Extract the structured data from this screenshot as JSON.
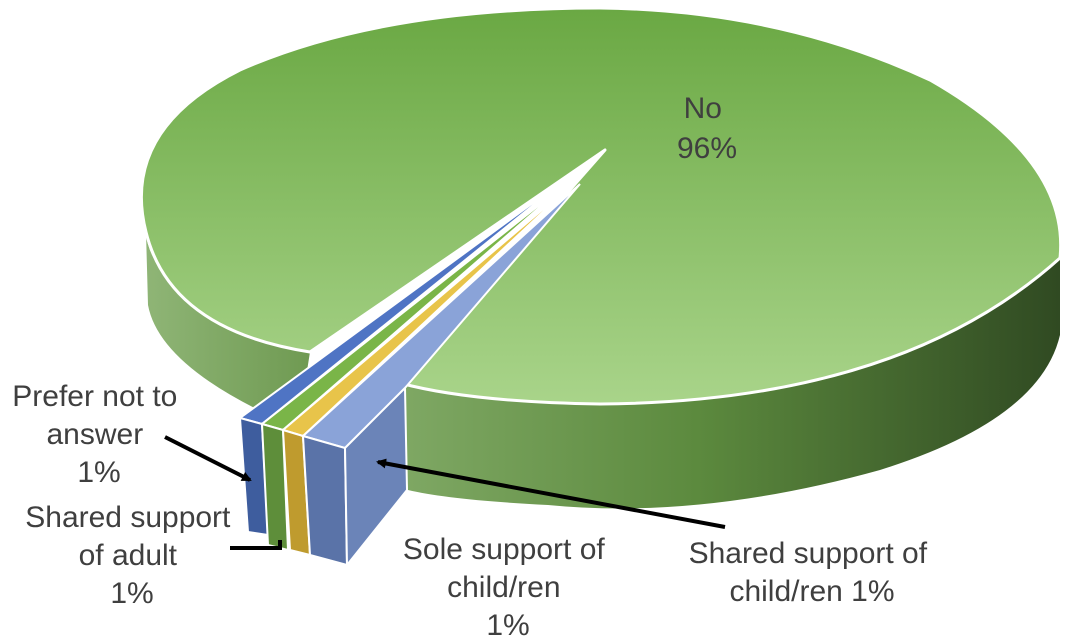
{
  "chart_data": {
    "type": "pie",
    "title": "",
    "slices": [
      {
        "label": "No",
        "value": 96,
        "value_text": "96%",
        "color": "#8cbd64"
      },
      {
        "label": "Shared support of child/ren",
        "value": 1,
        "value_text": "1%",
        "color": "#7f97cf"
      },
      {
        "label": "Sole support of child/ren",
        "value": 1,
        "value_text": "1%",
        "color": "#e8c44a"
      },
      {
        "label": "Shared support of adult",
        "value": 1,
        "value_text": "1%",
        "color": "#78b04a"
      },
      {
        "label": "Prefer not to answer",
        "value": 1,
        "value_text": "1%",
        "color": "#4f74c4"
      }
    ],
    "style": "3d-exploded",
    "legend": "none"
  },
  "labels": {
    "no": {
      "line1": "No",
      "line2": "96%"
    },
    "prefer": {
      "line1": "Prefer not to",
      "line2": "answer",
      "line3": "1%"
    },
    "adult": {
      "line1": "Shared support",
      "line2": "of adult",
      "line3": "1%"
    },
    "sole": {
      "line1": "Sole support of",
      "line2": "child/ren",
      "line3": "1%"
    },
    "shared_child": {
      "line1": "Shared support of",
      "line2": "child/ren 1%"
    }
  }
}
